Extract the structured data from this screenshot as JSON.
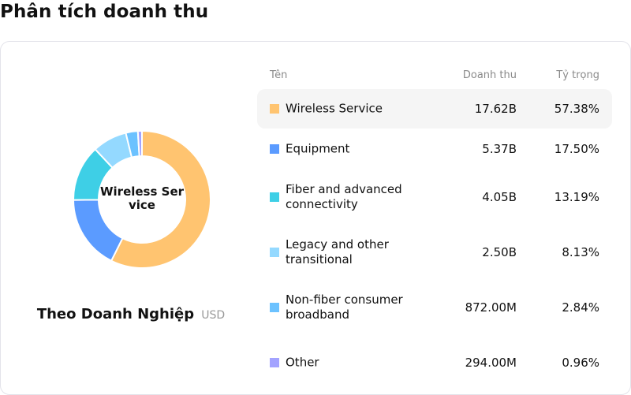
{
  "page": {
    "title": "Phân tích doanh thu"
  },
  "donut": {
    "center_label": "Wireless Service"
  },
  "caption": {
    "title": "Theo Doanh Nghiệp",
    "unit": "USD"
  },
  "table": {
    "headers": {
      "name": "Tên",
      "revenue": "Doanh thu",
      "share": "Tỷ trọng"
    },
    "rows": [
      {
        "name": "Wireless Service",
        "revenue": "17.62B",
        "share": "57.38%",
        "color": "#ffc470",
        "active": true
      },
      {
        "name": "Equipment",
        "revenue": "5.37B",
        "share": "17.50%",
        "color": "#5b9bff",
        "active": false
      },
      {
        "name": "Fiber and advanced connectivity",
        "revenue": "4.05B",
        "share": "13.19%",
        "color": "#3ecfe6",
        "active": false
      },
      {
        "name": "Legacy and other transitional",
        "revenue": "2.50B",
        "share": "8.13%",
        "color": "#94d9ff",
        "active": false
      },
      {
        "name": "Non-fiber consumer broadband",
        "revenue": "872.00M",
        "share": "2.84%",
        "color": "#6cc2ff",
        "active": false
      },
      {
        "name": "Other",
        "revenue": "294.00M",
        "share": "0.96%",
        "color": "#a3a3ff",
        "active": false
      }
    ]
  },
  "chart_data": {
    "type": "pie",
    "subtype": "donut",
    "title": "Phân tích doanh thu",
    "subtitle": "Theo Doanh Nghiệp (USD)",
    "center_label": "Wireless Service",
    "categories": [
      "Wireless Service",
      "Equipment",
      "Fiber and advanced connectivity",
      "Legacy and other transitional",
      "Non-fiber consumer broadband",
      "Other"
    ],
    "values": [
      17.62,
      5.37,
      4.05,
      2.5,
      0.872,
      0.294
    ],
    "value_unit": "B USD",
    "percentages": [
      57.38,
      17.5,
      13.19,
      8.13,
      2.84,
      0.96
    ],
    "colors": [
      "#ffc470",
      "#5b9bff",
      "#3ecfe6",
      "#94d9ff",
      "#6cc2ff",
      "#a3a3ff"
    ],
    "legend_position": "right (table)"
  }
}
